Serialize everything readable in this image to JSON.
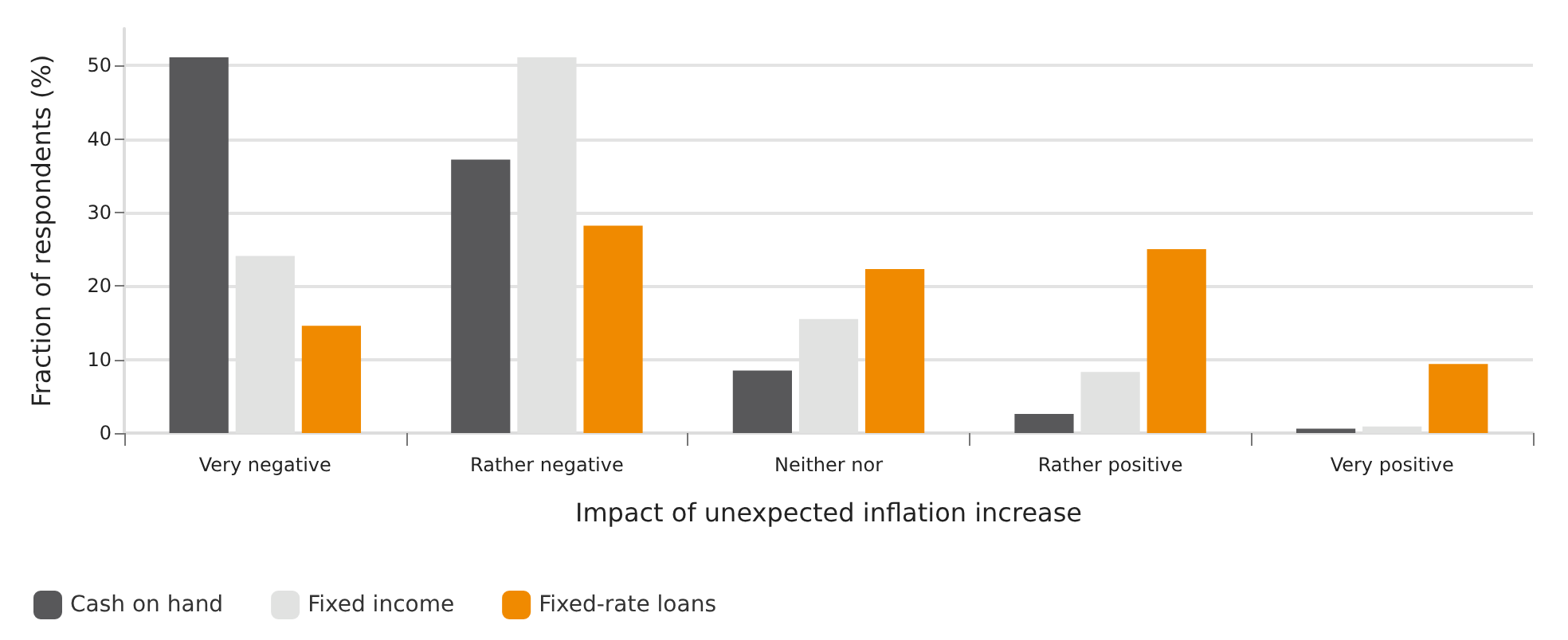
{
  "chart_data": {
    "type": "bar",
    "xlabel": "Impact of unexpected inflation increase",
    "ylabel": "Fraction of respondents (%)",
    "categories": [
      "Very negative",
      "Rather negative",
      "Neither nor",
      "Rather positive",
      "Very positive"
    ],
    "series": [
      {
        "name": "Cash on hand",
        "color": "#58585a",
        "values": [
          51.1,
          37.2,
          8.5,
          2.6,
          0.6
        ]
      },
      {
        "name": "Fixed income",
        "color": "#e1e2e1",
        "values": [
          24.1,
          51.1,
          15.5,
          8.3,
          0.9
        ]
      },
      {
        "name": "Fixed-rate loans",
        "color": "#f08a00",
        "values": [
          14.6,
          28.2,
          22.3,
          25.0,
          9.4
        ]
      }
    ],
    "ylim": [
      0,
      55
    ],
    "yticks": [
      0,
      10,
      20,
      30,
      40,
      50
    ],
    "grid": "y",
    "legend": "bottom left"
  }
}
